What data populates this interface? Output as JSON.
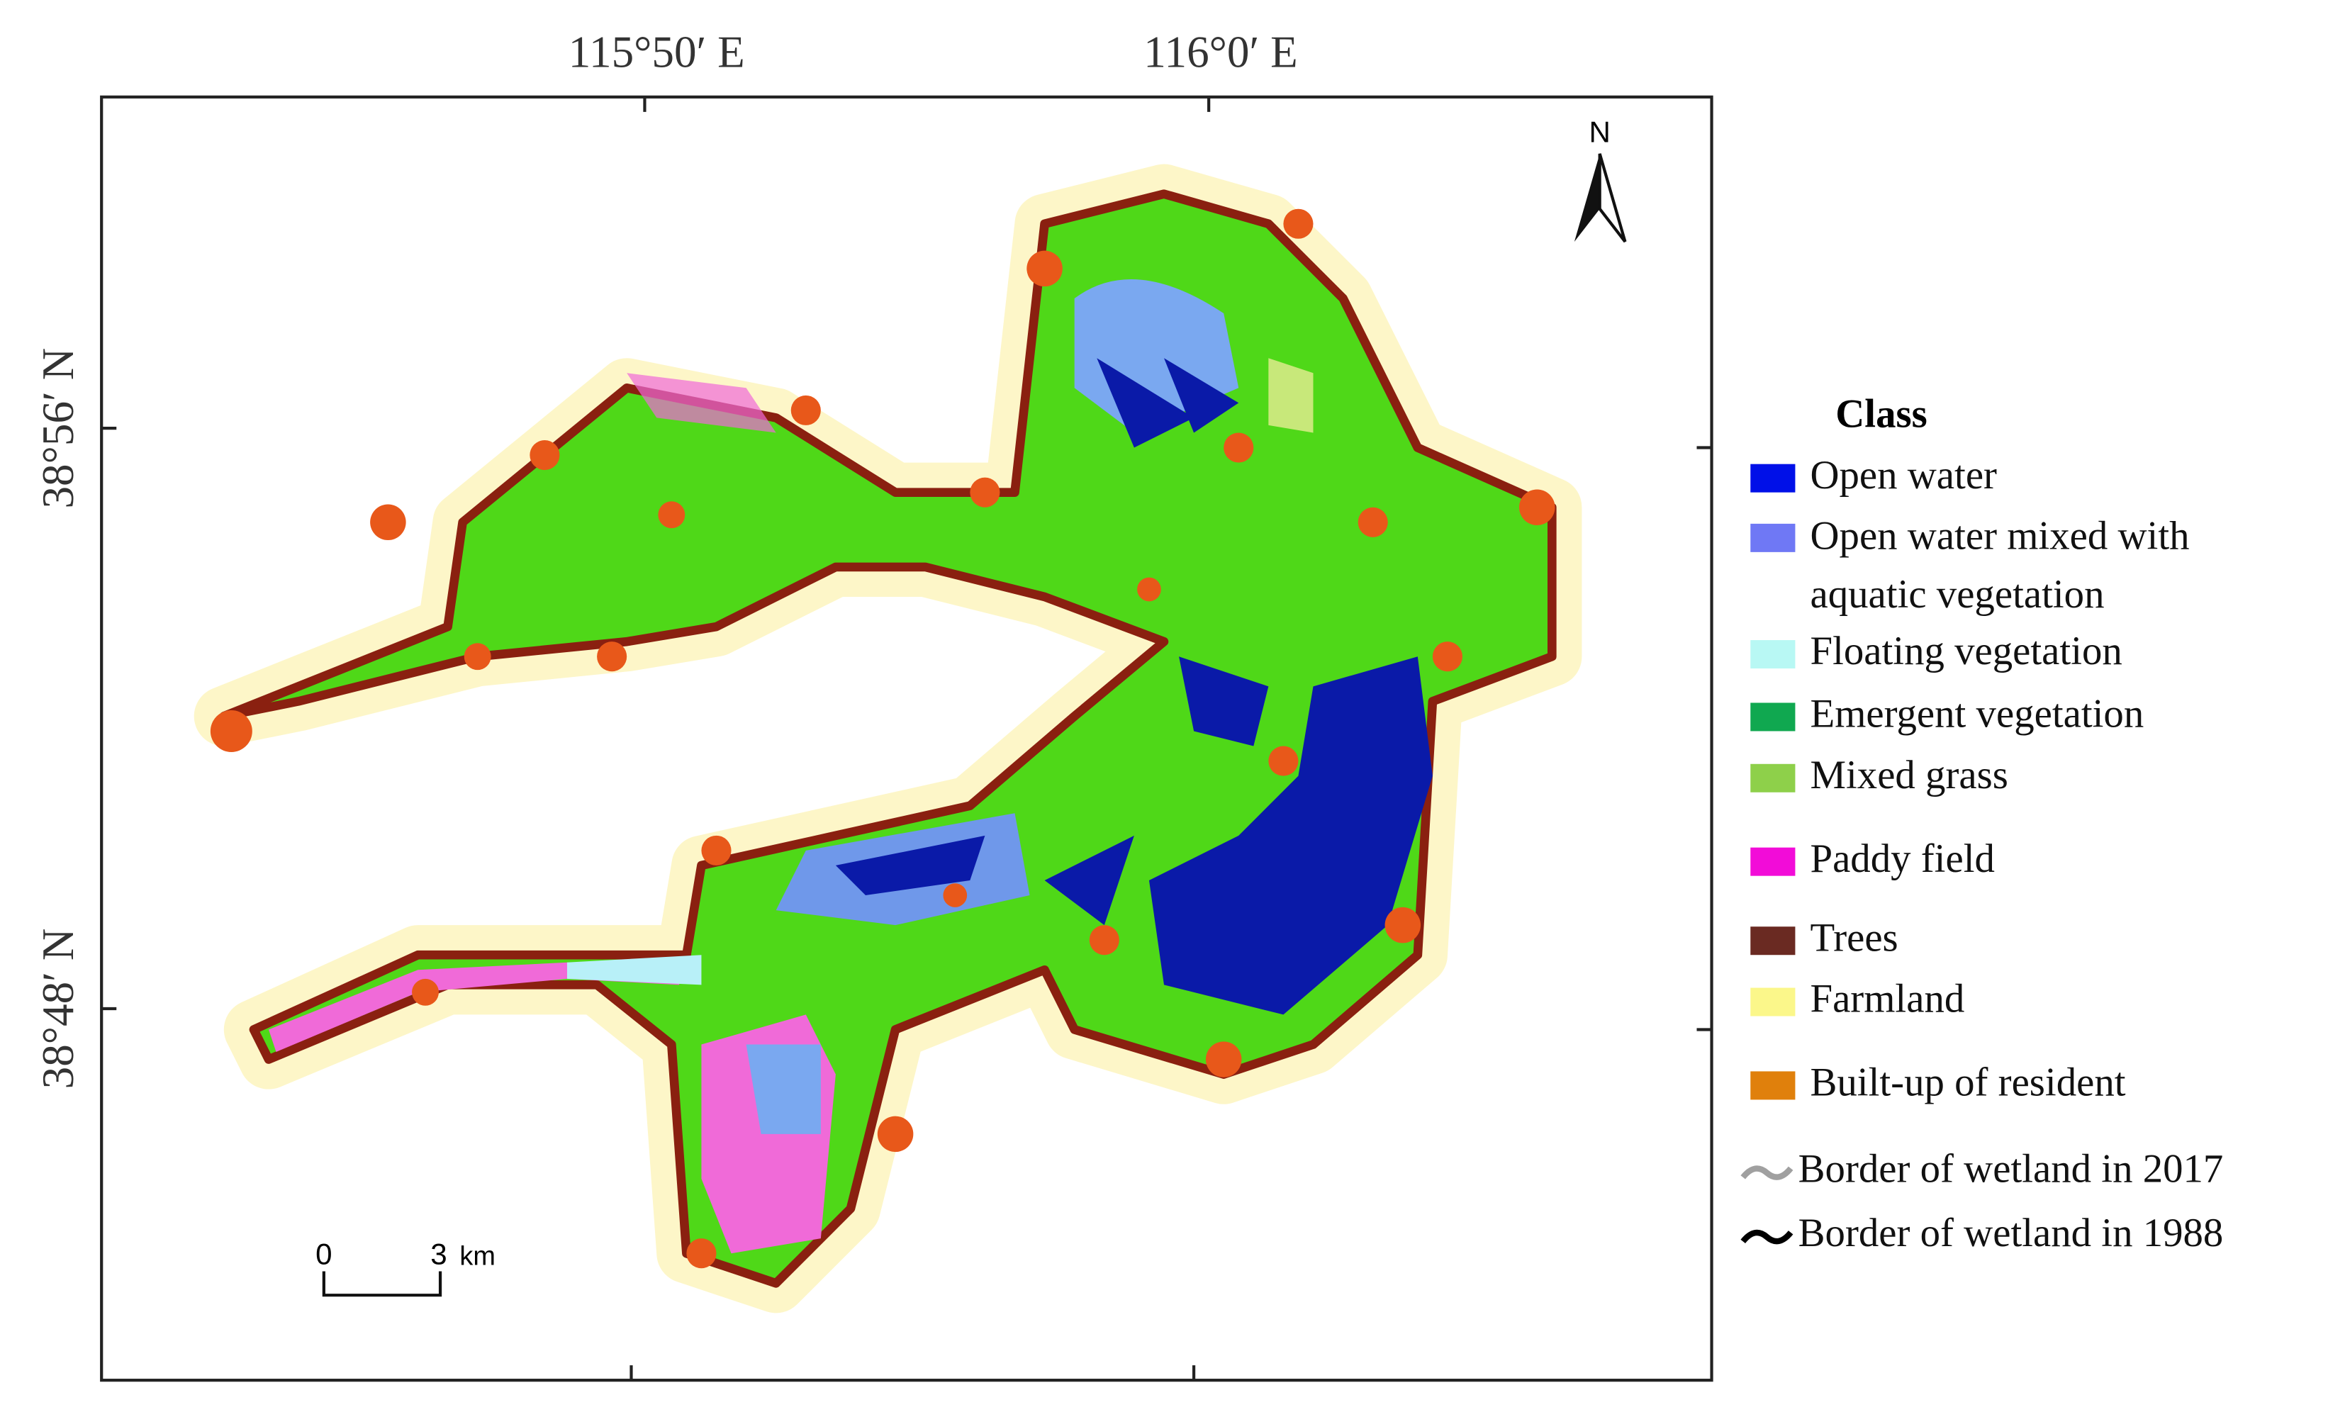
{
  "map": {
    "lon_labels": [
      "115°50′ E",
      "116°0′ E"
    ],
    "lat_labels": [
      "38°56′ N",
      "38°48′ N"
    ],
    "north_arrow": "N",
    "scale_bar": {
      "start": "0",
      "end": "3",
      "unit": "km"
    }
  },
  "legend": {
    "title": "Class",
    "items": [
      {
        "label": "Open water",
        "color": "#0010e8"
      },
      {
        "label": "Open water mixed with aquatic vegetation",
        "color": "#6f78f5"
      },
      {
        "label": "Floating vegetation",
        "color": "#b8f8f4"
      },
      {
        "label": "Emergent vegetation",
        "color": "#10a850"
      },
      {
        "label": "Mixed grass",
        "color": "#8ed04a"
      },
      {
        "label": "Paddy field",
        "color": "#f20cd8"
      },
      {
        "label": "Trees",
        "color": "#6a2a22"
      },
      {
        "label": "Farmland",
        "color": "#fbf78a"
      },
      {
        "label": "Built-up of resident",
        "color": "#e0800c"
      }
    ],
    "borders": [
      {
        "label": "Border of wetland in 2017",
        "color": "#a0a0a0"
      },
      {
        "label": "Border of wetland in 1988",
        "color": "#000000"
      }
    ]
  }
}
